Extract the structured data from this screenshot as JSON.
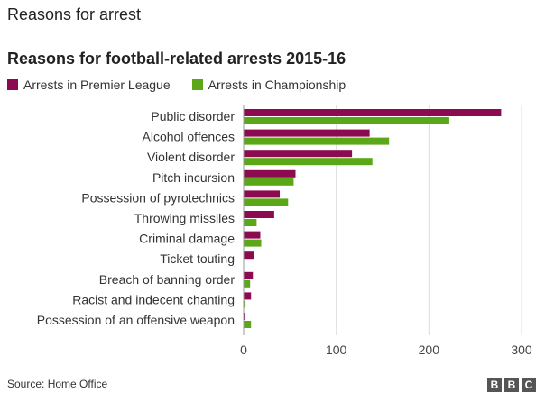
{
  "page": {
    "heading": "Reasons for arrest",
    "source": "Source: Home Office",
    "logo": [
      "B",
      "B",
      "C"
    ]
  },
  "chart_data": {
    "type": "bar",
    "orientation": "horizontal",
    "title": "Reasons for football-related arrests 2015-16",
    "xlabel": "",
    "ylabel": "",
    "xlim": [
      0,
      300
    ],
    "xticks": [
      0,
      100,
      200,
      300
    ],
    "grid": true,
    "legend_position": "top-left",
    "categories": [
      "Public disorder",
      "Alcohol offences",
      "Violent disorder",
      "Pitch incursion",
      "Possession of pyrotechnics",
      "Throwing missiles",
      "Criminal damage",
      "Ticket touting",
      "Breach of banning order",
      "Racist and indecent chanting",
      "Possession of an offensive weapon"
    ],
    "series": [
      {
        "name": "Arrests in Premier League",
        "color": "#8b0a50",
        "values": [
          278,
          136,
          117,
          56,
          39,
          33,
          18,
          11,
          10,
          8,
          2
        ]
      },
      {
        "name": "Arrests in Championship",
        "color": "#5aa817",
        "values": [
          222,
          157,
          139,
          54,
          48,
          14,
          19,
          0,
          7,
          2,
          8
        ]
      }
    ]
  }
}
